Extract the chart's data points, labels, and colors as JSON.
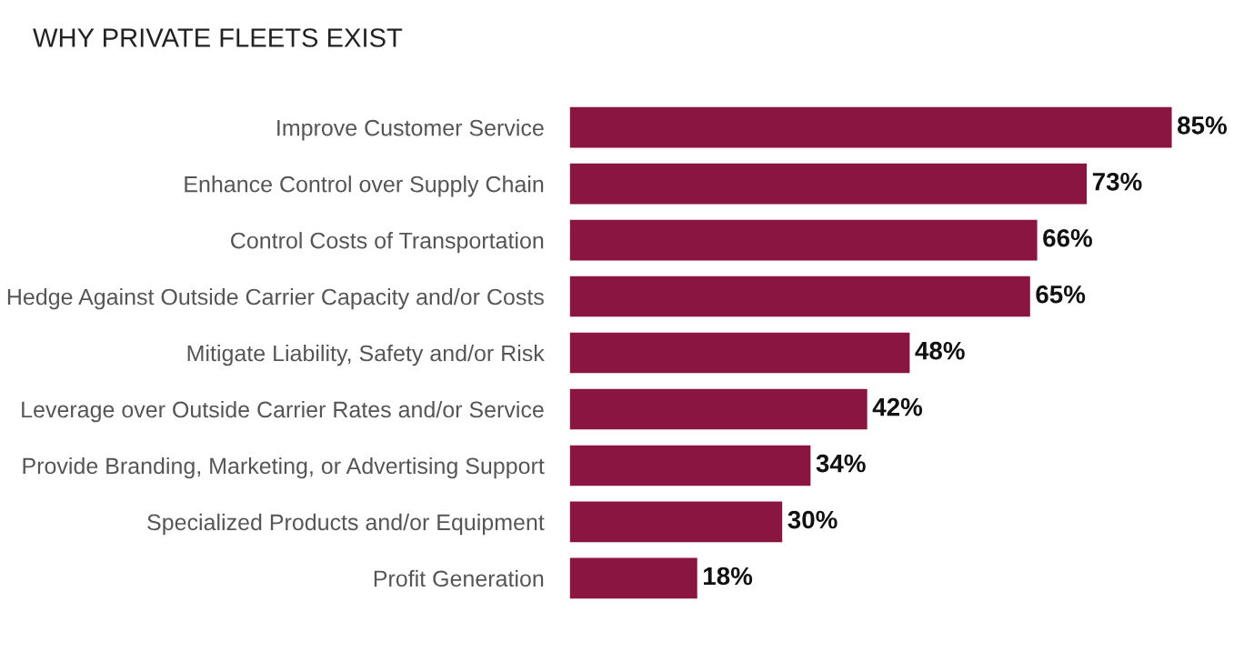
{
  "chart_data": {
    "type": "bar",
    "orientation": "horizontal",
    "title": "WHY PRIVATE FLEETS EXIST",
    "categories": [
      "Improve Customer Service",
      "Enhance Control over Supply Chain",
      "Control Costs of Transportation",
      "Hedge Against Outside Carrier Capacity and/or Costs",
      "Mitigate Liability, Safety and/or Risk",
      "Leverage over Outside Carrier Rates and/or Service",
      "Provide Branding, Marketing, or Advertising Support",
      "Specialized Products and/or Equipment",
      "Profit Generation"
    ],
    "values": [
      85,
      73,
      66,
      65,
      48,
      42,
      34,
      30,
      18
    ],
    "value_labels": [
      "85%",
      "73%",
      "66%",
      "65%",
      "48%",
      "42%",
      "34%",
      "30%",
      "18%"
    ],
    "color": "#8a1540",
    "grid": false
  }
}
